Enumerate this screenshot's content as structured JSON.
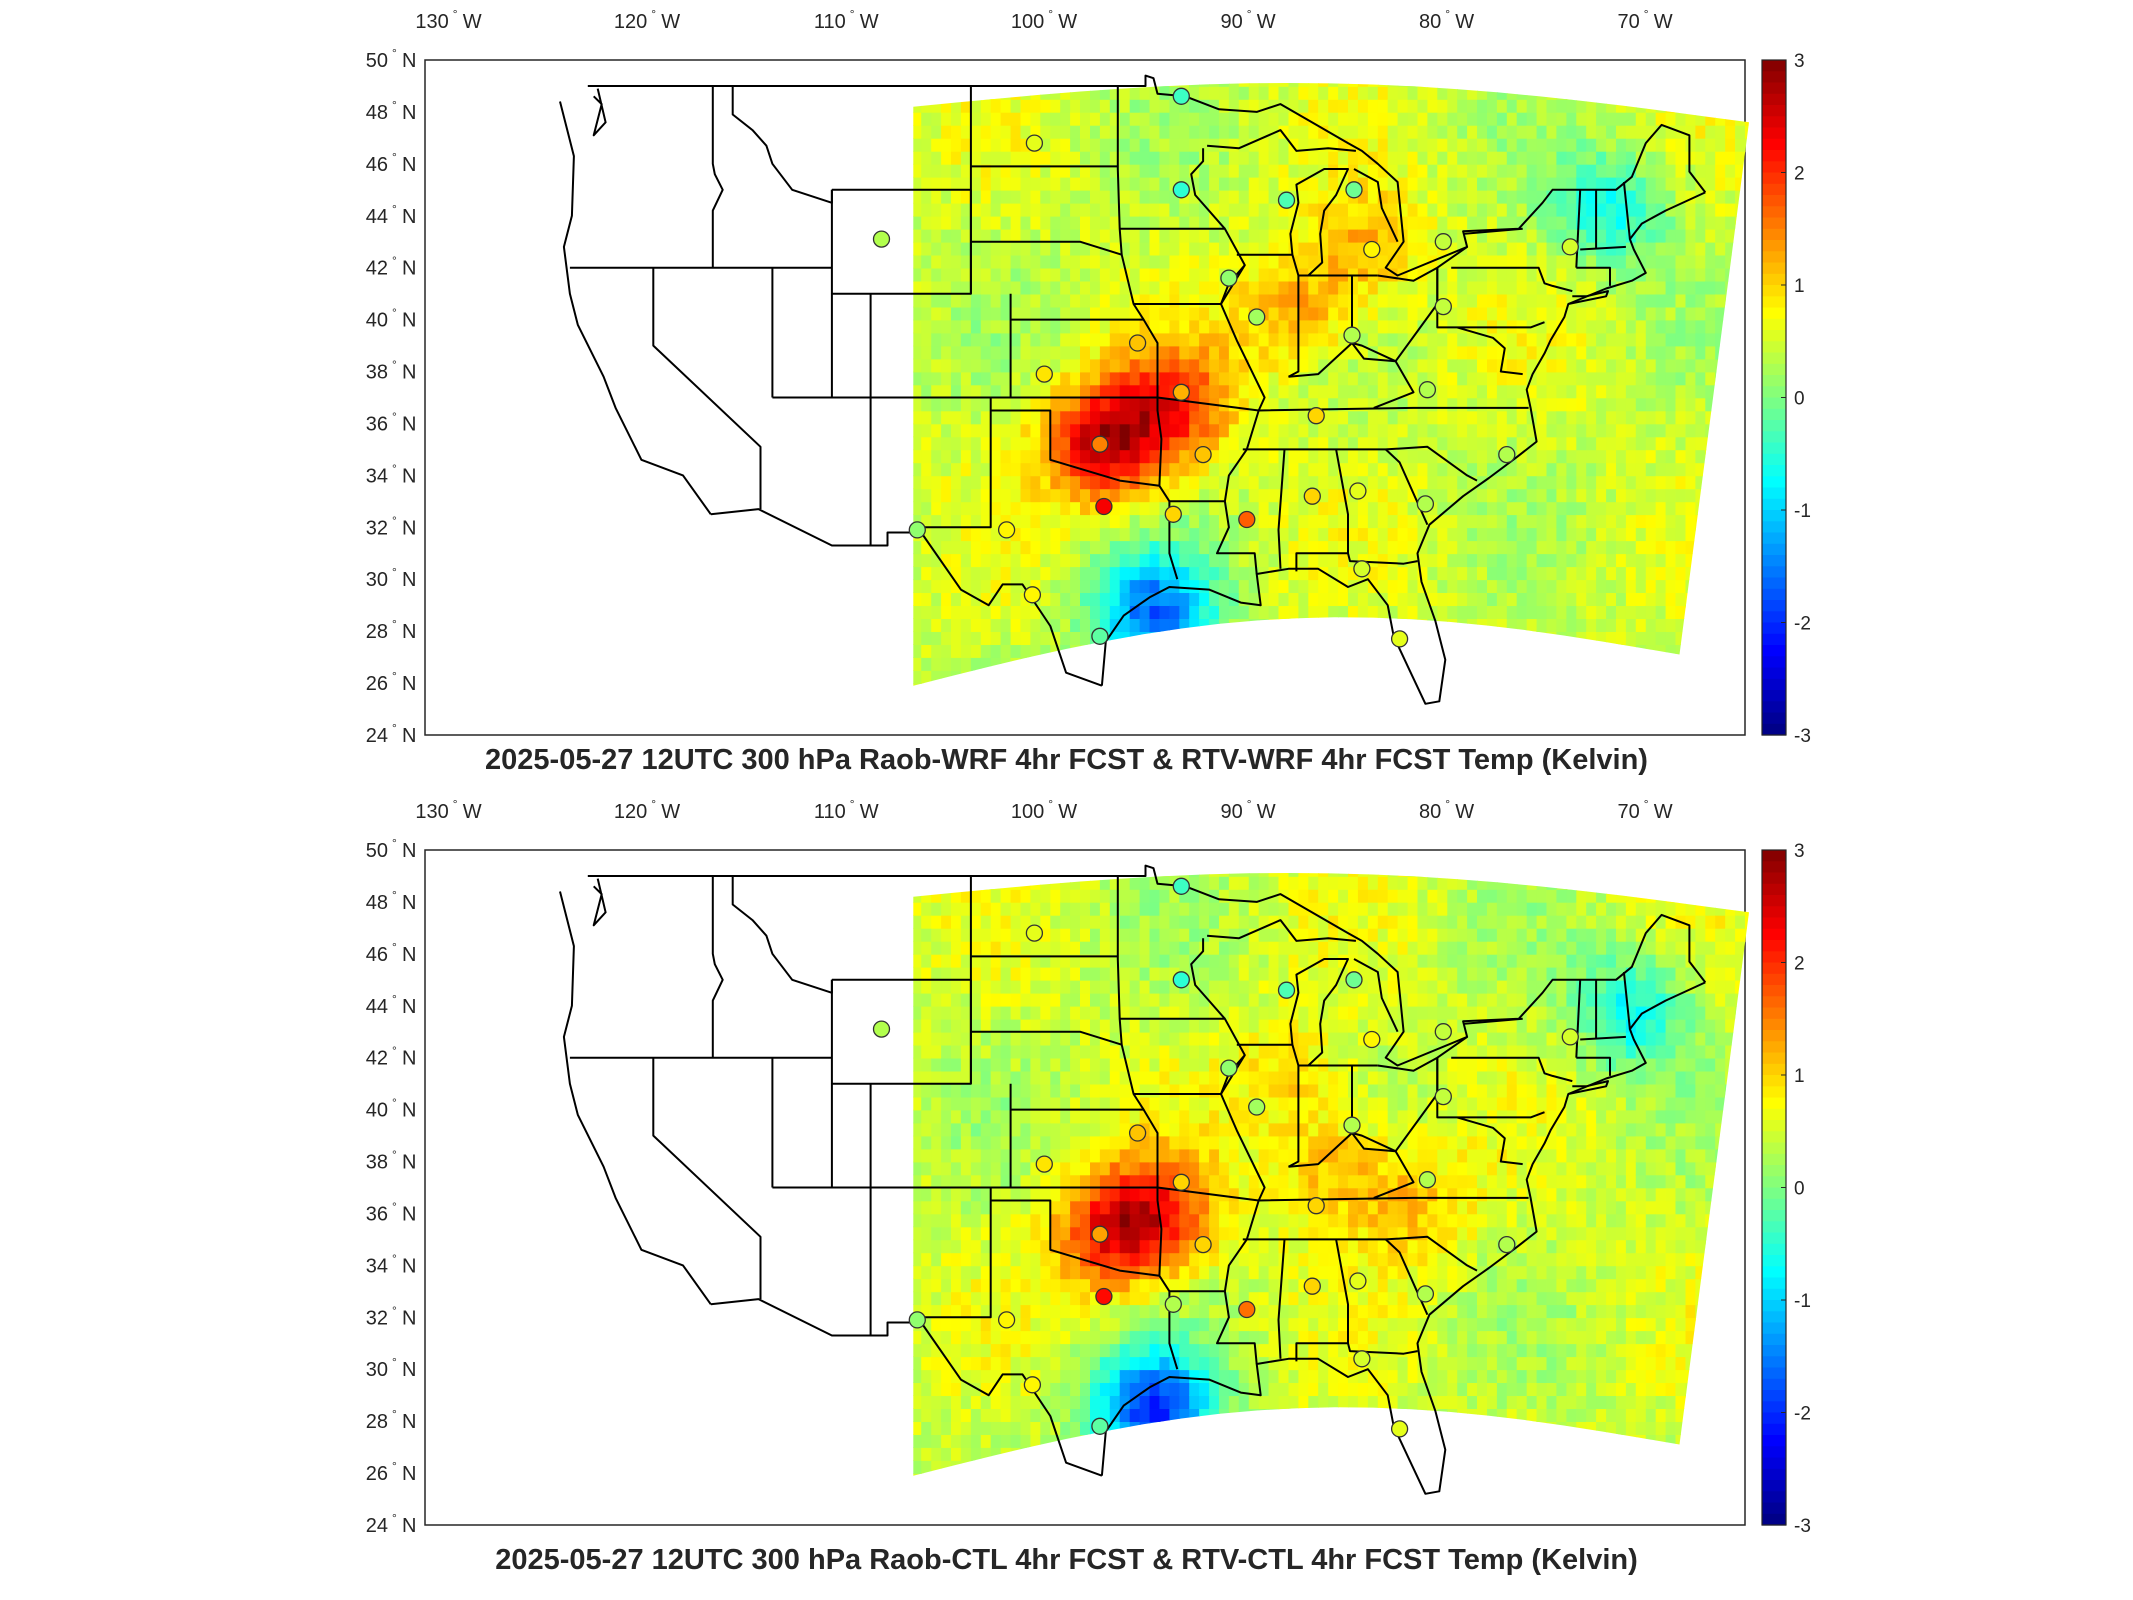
{
  "colors": {
    "background": "#ffffff",
    "axis": "#262626",
    "colormap": "jet",
    "state_lines": "#000000"
  },
  "colorbar": {
    "ticks": [
      "3",
      "2",
      "1",
      "0",
      "-1",
      "-2",
      "-3"
    ],
    "range": [
      -3,
      3
    ]
  },
  "lon_ticks": [
    {
      "deg": "130",
      "hem": "W"
    },
    {
      "deg": "120",
      "hem": "W"
    },
    {
      "deg": "110",
      "hem": "W"
    },
    {
      "deg": "100",
      "hem": "W"
    },
    {
      "deg": "90",
      "hem": "W"
    },
    {
      "deg": "80",
      "hem": "W"
    },
    {
      "deg": "70",
      "hem": "W"
    }
  ],
  "lat_ticks": [
    {
      "deg": "50",
      "hem": "N"
    },
    {
      "deg": "48",
      "hem": "N"
    },
    {
      "deg": "46",
      "hem": "N"
    },
    {
      "deg": "44",
      "hem": "N"
    },
    {
      "deg": "42",
      "hem": "N"
    },
    {
      "deg": "40",
      "hem": "N"
    },
    {
      "deg": "38",
      "hem": "N"
    },
    {
      "deg": "36",
      "hem": "N"
    },
    {
      "deg": "34",
      "hem": "N"
    },
    {
      "deg": "32",
      "hem": "N"
    },
    {
      "deg": "30",
      "hem": "N"
    },
    {
      "deg": "28",
      "hem": "N"
    },
    {
      "deg": "26",
      "hem": "N"
    },
    {
      "deg": "24",
      "hem": "N"
    }
  ],
  "maps": [
    {
      "title": "2025-05-27 12UTC 300 hPa Raob-WRF 4hr FCST & RTV-WRF 4hr FCST Temp (Kelvin)",
      "field_hotspots": [
        {
          "lon": -97.5,
          "lat": 35.0,
          "value": 2.6
        },
        {
          "lon": -94.0,
          "lat": 36.5,
          "value": 1.9
        },
        {
          "lon": -88.0,
          "lat": 40.0,
          "value": 1.3
        },
        {
          "lon": -84.5,
          "lat": 42.5,
          "value": 1.2
        },
        {
          "lon": -95.0,
          "lat": 28.5,
          "value": -1.6
        },
        {
          "lon": -72.0,
          "lat": 44.0,
          "value": -0.6
        }
      ],
      "raobs": [
        {
          "lon": -108.5,
          "lat": 43.1,
          "value": 0.3
        },
        {
          "lon": -93.4,
          "lat": 48.6,
          "value": -0.4
        },
        {
          "lon": -100.8,
          "lat": 46.8,
          "value": 0.6
        },
        {
          "lon": -93.4,
          "lat": 45.0,
          "value": -0.5
        },
        {
          "lon": -88.1,
          "lat": 44.6,
          "value": -0.3
        },
        {
          "lon": -84.7,
          "lat": 45.0,
          "value": -0.1
        },
        {
          "lon": -83.8,
          "lat": 42.7,
          "value": 0.8
        },
        {
          "lon": -80.2,
          "lat": 43.0,
          "value": 0.4
        },
        {
          "lon": -73.8,
          "lat": 42.8,
          "value": 0.5
        },
        {
          "lon": -91.0,
          "lat": 41.6,
          "value": 0.1
        },
        {
          "lon": -89.6,
          "lat": 40.1,
          "value": 0.2
        },
        {
          "lon": -80.2,
          "lat": 40.5,
          "value": 0.4
        },
        {
          "lon": -84.8,
          "lat": 39.4,
          "value": 0.3
        },
        {
          "lon": -95.6,
          "lat": 39.1,
          "value": 1.1
        },
        {
          "lon": -100.3,
          "lat": 37.9,
          "value": 0.9
        },
        {
          "lon": -93.4,
          "lat": 37.2,
          "value": 1.2
        },
        {
          "lon": -86.6,
          "lat": 36.3,
          "value": 1.0
        },
        {
          "lon": -81.0,
          "lat": 37.3,
          "value": 0.3
        },
        {
          "lon": -97.5,
          "lat": 35.2,
          "value": 1.5
        },
        {
          "lon": -92.3,
          "lat": 34.8,
          "value": 1.1
        },
        {
          "lon": -97.3,
          "lat": 32.8,
          "value": 2.3
        },
        {
          "lon": -106.7,
          "lat": 31.9,
          "value": 0.1
        },
        {
          "lon": -102.2,
          "lat": 31.9,
          "value": 0.8
        },
        {
          "lon": -93.8,
          "lat": 32.5,
          "value": 1.0
        },
        {
          "lon": -90.1,
          "lat": 32.3,
          "value": 1.7
        },
        {
          "lon": -86.8,
          "lat": 33.2,
          "value": 1.0
        },
        {
          "lon": -84.5,
          "lat": 33.4,
          "value": 0.6
        },
        {
          "lon": -81.1,
          "lat": 32.9,
          "value": 0.3
        },
        {
          "lon": -77.0,
          "lat": 34.8,
          "value": 0.3
        },
        {
          "lon": -100.9,
          "lat": 29.4,
          "value": 0.8
        },
        {
          "lon": -97.5,
          "lat": 27.8,
          "value": -0.2
        },
        {
          "lon": -84.3,
          "lat": 30.4,
          "value": 0.5
        },
        {
          "lon": -82.4,
          "lat": 27.7,
          "value": 0.6
        }
      ]
    },
    {
      "title": "2025-05-27 12UTC 300 hPa Raob-CTL 4hr FCST & RTV-CTL 4hr FCST Temp (Kelvin)",
      "field_hotspots": [
        {
          "lon": -97.0,
          "lat": 35.0,
          "value": 2.2
        },
        {
          "lon": -94.5,
          "lat": 36.0,
          "value": 1.6
        },
        {
          "lon": -86.0,
          "lat": 37.5,
          "value": 1.2
        },
        {
          "lon": -88.0,
          "lat": 41.0,
          "value": 1.0
        },
        {
          "lon": -82.0,
          "lat": 36.0,
          "value": 1.1
        },
        {
          "lon": -95.0,
          "lat": 28.2,
          "value": -2.0
        },
        {
          "lon": -71.0,
          "lat": 43.5,
          "value": -0.7
        }
      ],
      "raobs": [
        {
          "lon": -108.5,
          "lat": 43.1,
          "value": 0.3
        },
        {
          "lon": -93.4,
          "lat": 48.6,
          "value": -0.4
        },
        {
          "lon": -100.8,
          "lat": 46.8,
          "value": 0.6
        },
        {
          "lon": -93.4,
          "lat": 45.0,
          "value": -0.5
        },
        {
          "lon": -88.1,
          "lat": 44.6,
          "value": -0.3
        },
        {
          "lon": -84.7,
          "lat": 45.0,
          "value": -0.1
        },
        {
          "lon": -83.8,
          "lat": 42.7,
          "value": 0.8
        },
        {
          "lon": -80.2,
          "lat": 43.0,
          "value": 0.4
        },
        {
          "lon": -73.8,
          "lat": 42.8,
          "value": 0.5
        },
        {
          "lon": -91.0,
          "lat": 41.6,
          "value": 0.1
        },
        {
          "lon": -89.6,
          "lat": 40.1,
          "value": 0.2
        },
        {
          "lon": -80.2,
          "lat": 40.5,
          "value": 0.4
        },
        {
          "lon": -84.8,
          "lat": 39.4,
          "value": 0.3
        },
        {
          "lon": -95.6,
          "lat": 39.1,
          "value": 1.1
        },
        {
          "lon": -100.3,
          "lat": 37.9,
          "value": 0.9
        },
        {
          "lon": -93.4,
          "lat": 37.2,
          "value": 1.0
        },
        {
          "lon": -86.6,
          "lat": 36.3,
          "value": 1.0
        },
        {
          "lon": -81.0,
          "lat": 37.3,
          "value": 0.3
        },
        {
          "lon": -97.5,
          "lat": 35.2,
          "value": 1.3
        },
        {
          "lon": -92.3,
          "lat": 34.8,
          "value": 1.0
        },
        {
          "lon": -97.3,
          "lat": 32.8,
          "value": 2.2
        },
        {
          "lon": -106.7,
          "lat": 31.9,
          "value": 0.1
        },
        {
          "lon": -102.2,
          "lat": 31.9,
          "value": 0.8
        },
        {
          "lon": -93.8,
          "lat": 32.5,
          "value": 0.3
        },
        {
          "lon": -90.1,
          "lat": 32.3,
          "value": 1.6
        },
        {
          "lon": -86.8,
          "lat": 33.2,
          "value": 1.0
        },
        {
          "lon": -84.5,
          "lat": 33.4,
          "value": 0.6
        },
        {
          "lon": -81.1,
          "lat": 32.9,
          "value": 0.3
        },
        {
          "lon": -77.0,
          "lat": 34.8,
          "value": 0.3
        },
        {
          "lon": -100.9,
          "lat": 29.4,
          "value": 0.8
        },
        {
          "lon": -97.5,
          "lat": 27.8,
          "value": -0.2
        },
        {
          "lon": -84.3,
          "lat": 30.4,
          "value": 0.5
        },
        {
          "lon": -82.4,
          "lat": 27.7,
          "value": 0.6
        }
      ]
    }
  ]
}
